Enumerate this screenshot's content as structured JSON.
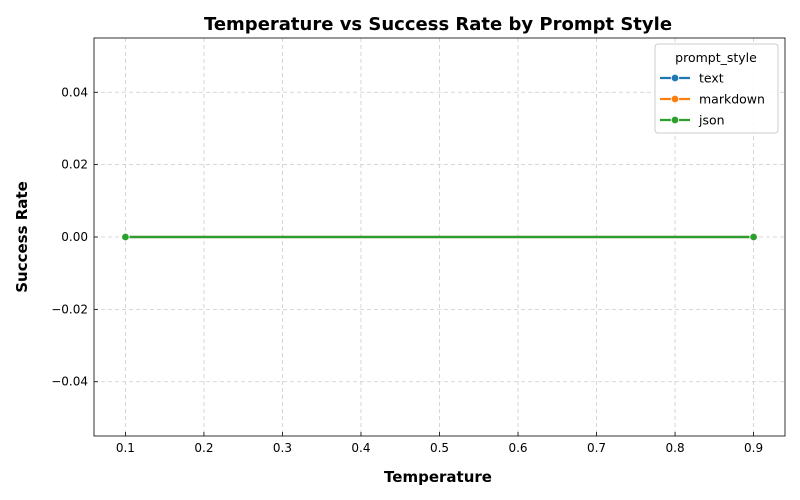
{
  "chart_data": {
    "type": "line",
    "title": "Temperature vs Success Rate by Prompt Style",
    "xlabel": "Temperature",
    "ylabel": "Success Rate",
    "x": [
      0.1,
      0.9
    ],
    "xlim": [
      0.06,
      0.94
    ],
    "ylim": [
      -0.055,
      0.055
    ],
    "xticks": [
      0.1,
      0.2,
      0.3,
      0.4,
      0.5,
      0.6,
      0.7,
      0.8,
      0.9
    ],
    "xtick_labels": [
      "0.1",
      "0.2",
      "0.3",
      "0.4",
      "0.5",
      "0.6",
      "0.7",
      "0.8",
      "0.9"
    ],
    "yticks": [
      0.04,
      0.02,
      0.0,
      -0.02,
      -0.04
    ],
    "ytick_labels": [
      "0.04",
      "0.02",
      "0.00",
      "−0.02",
      "−0.04"
    ],
    "grid": true,
    "legend": {
      "title": "prompt_style",
      "placement": "top-right"
    },
    "series": [
      {
        "name": "text",
        "color": "#1f77b4",
        "values": [
          0.0,
          0.0
        ]
      },
      {
        "name": "markdown",
        "color": "#ff7f0e",
        "values": [
          0.0,
          0.0
        ]
      },
      {
        "name": "json",
        "color": "#2ca02c",
        "values": [
          0.0,
          0.0
        ]
      }
    ]
  }
}
